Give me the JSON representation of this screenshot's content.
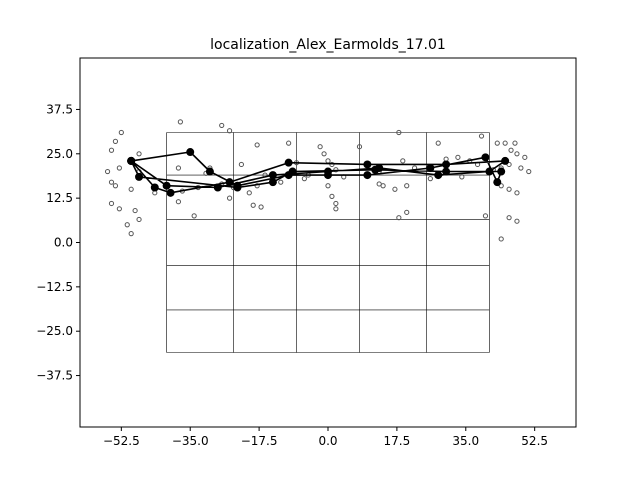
{
  "chart_data": {
    "type": "scatter",
    "title": "localization_Alex_Earmolds_17.01",
    "xlabel": "",
    "ylabel": "",
    "xlim": [
      -63,
      63
    ],
    "ylim": [
      -52,
      52
    ],
    "xticks": [
      -52.5,
      -35.0,
      -17.5,
      0.0,
      17.5,
      35.0,
      52.5
    ],
    "xtick_labels": [
      "−52.5",
      "−35.0",
      "−17.5",
      "0.0",
      "17.5",
      "35.0",
      "52.5"
    ],
    "yticks": [
      37.5,
      25.0,
      12.5,
      0.0,
      -12.5,
      -25.0,
      -37.5
    ],
    "ytick_labels": [
      "37.5",
      "25.0",
      "12.5",
      "0.0",
      "−12.5",
      "−25.0",
      "−37.5"
    ],
    "grid": {
      "x": [
        -41,
        -24,
        -8,
        8,
        25,
        41
      ],
      "y": [
        31,
        19,
        6.5,
        -6.5,
        -19,
        -31
      ],
      "top_x": [
        -41,
        -41
      ],
      "top_y": [
        6.5,
        31
      ]
    },
    "colors": {
      "scatter_edge": "#555555",
      "line": "#000000"
    },
    "series": [
      {
        "kind": "scatter",
        "points": [
          [
            -52.5,
            31
          ],
          [
            -54,
            28.5
          ],
          [
            -55,
            26
          ],
          [
            -48,
            25
          ],
          [
            -37.5,
            34
          ],
          [
            -27,
            33
          ],
          [
            -25,
            31.5
          ],
          [
            -18,
            27.5
          ],
          [
            -10,
            28
          ],
          [
            8,
            27
          ],
          [
            18,
            31
          ],
          [
            28,
            28
          ],
          [
            39,
            30
          ],
          [
            43,
            28
          ],
          [
            45,
            28
          ],
          [
            47.5,
            28
          ],
          [
            46.5,
            26
          ],
          [
            48,
            25
          ],
          [
            50,
            24
          ],
          [
            -56,
            20
          ],
          [
            -53,
            21
          ],
          [
            -48,
            20
          ],
          [
            -38,
            21
          ],
          [
            -30,
            21
          ],
          [
            -22,
            22
          ],
          [
            -16,
            19
          ],
          [
            -8,
            22.5
          ],
          [
            -2,
            27
          ],
          [
            -1,
            25
          ],
          [
            0,
            23
          ],
          [
            1,
            22
          ],
          [
            2,
            20.5
          ],
          [
            4,
            18.5
          ],
          [
            13,
            20
          ],
          [
            19,
            23
          ],
          [
            22,
            21
          ],
          [
            30,
            23.5
          ],
          [
            33,
            24
          ],
          [
            36,
            23
          ],
          [
            38,
            22
          ],
          [
            42,
            20.5
          ],
          [
            44,
            21
          ],
          [
            46,
            22
          ],
          [
            49,
            21
          ],
          [
            51,
            20
          ],
          [
            -55,
            17
          ],
          [
            -54,
            16
          ],
          [
            -50,
            15
          ],
          [
            -44,
            14
          ],
          [
            -37,
            14.5
          ],
          [
            -33,
            15.5
          ],
          [
            -27,
            16.5
          ],
          [
            -24,
            15.5
          ],
          [
            -18,
            16
          ],
          [
            -12,
            17
          ],
          [
            -6,
            18
          ],
          [
            0,
            16
          ],
          [
            1,
            13
          ],
          [
            2,
            11
          ],
          [
            2,
            9.5
          ],
          [
            13,
            16.5
          ],
          [
            17,
            15
          ],
          [
            20,
            16
          ],
          [
            26,
            18
          ],
          [
            34,
            18.5
          ],
          [
            44,
            16
          ],
          [
            46,
            15
          ],
          [
            48,
            14
          ],
          [
            -55,
            11
          ],
          [
            -53,
            9.5
          ],
          [
            -49,
            9
          ],
          [
            -38,
            11.5
          ],
          [
            -34,
            7.5
          ],
          [
            -25,
            12.5
          ],
          [
            -19,
            10.5
          ],
          [
            -17,
            10
          ],
          [
            18,
            7
          ],
          [
            20,
            8.5
          ],
          [
            40,
            7.5
          ],
          [
            46,
            7
          ],
          [
            48,
            6
          ],
          [
            -51,
            5
          ],
          [
            -48,
            6.5
          ],
          [
            -50,
            2.5
          ],
          [
            44,
            1
          ],
          [
            14,
            16
          ],
          [
            29,
            19.5
          ],
          [
            -5,
            19
          ],
          [
            -31,
            19.5
          ],
          [
            -20,
            14
          ]
        ]
      },
      {
        "kind": "line",
        "points": [
          [
            -50,
            23
          ],
          [
            -35,
            25.5
          ],
          [
            -30,
            20
          ],
          [
            -23,
            16
          ],
          [
            -10,
            19
          ],
          [
            0,
            19
          ],
          [
            10,
            19
          ],
          [
            26,
            21
          ],
          [
            40,
            24
          ],
          [
            43,
            17
          ],
          [
            44,
            20
          ],
          [
            30,
            20
          ],
          [
            12,
            20.5
          ],
          [
            -9,
            20
          ],
          [
            -14,
            17
          ],
          [
            -23,
            15.5
          ],
          [
            -48,
            18.5
          ],
          [
            -50,
            23
          ],
          [
            -41,
            16
          ],
          [
            -28,
            15.5
          ],
          [
            -14,
            19
          ],
          [
            0,
            20
          ],
          [
            13,
            21
          ],
          [
            28,
            19
          ],
          [
            41,
            20
          ],
          [
            45,
            23
          ],
          [
            30,
            22
          ],
          [
            10,
            22
          ],
          [
            -10,
            22.5
          ],
          [
            -25,
            17
          ],
          [
            -40,
            14
          ],
          [
            -44,
            15.5
          ],
          [
            -50,
            23
          ]
        ]
      }
    ]
  }
}
